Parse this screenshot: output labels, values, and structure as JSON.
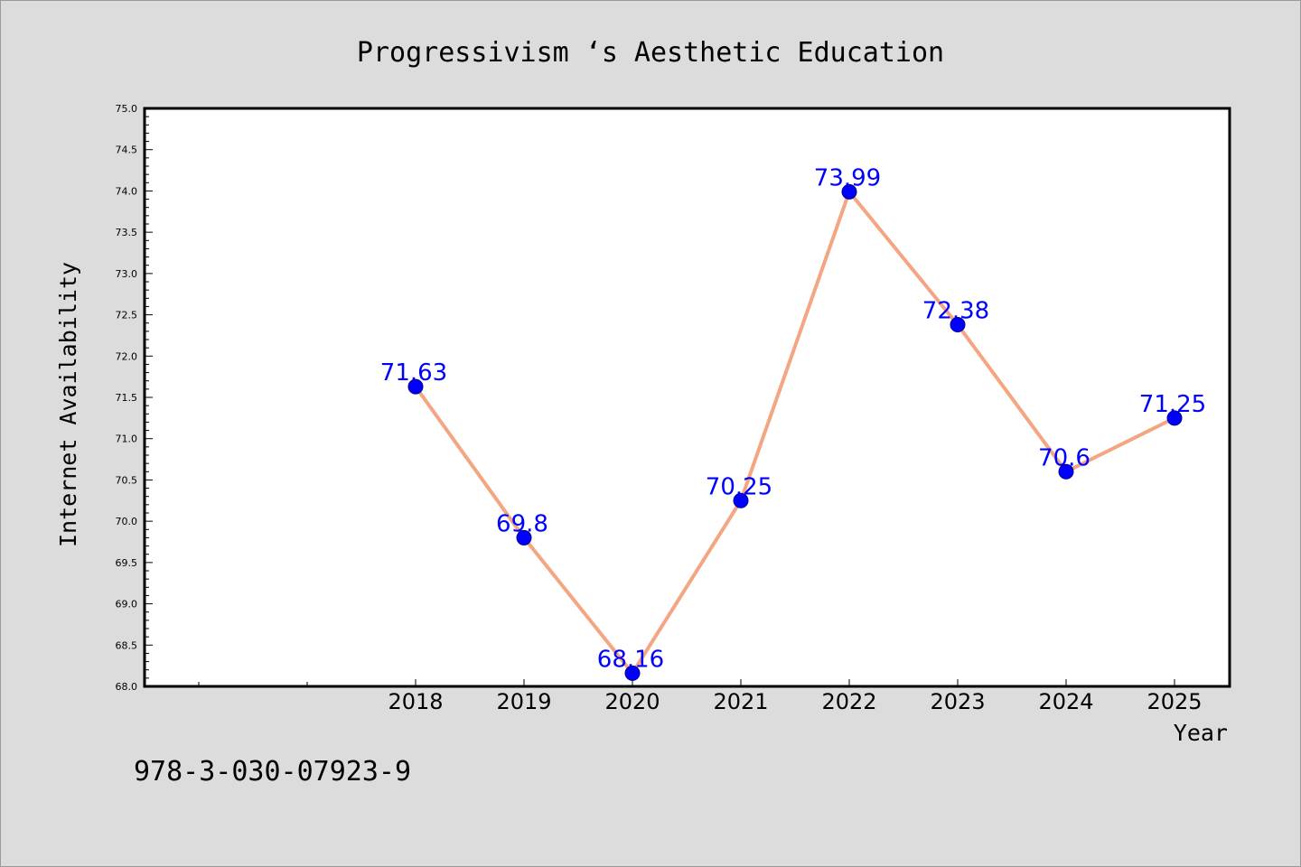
{
  "footnote": "978-3-030-07923-9",
  "chart_data": {
    "type": "line",
    "title": "Progressivism ‘s Aesthetic Education",
    "xlabel": "Year",
    "ylabel": "Internet Availability",
    "categories": [
      "2018",
      "2019",
      "2020",
      "2021",
      "2022",
      "2023",
      "2024",
      "2025"
    ],
    "series": [
      {
        "values": [
          71.63,
          69.8,
          68.16,
          70.25,
          73.99,
          72.38,
          70.6,
          71.25
        ]
      }
    ],
    "data_labels": [
      "71.63",
      "69.8",
      "68.16",
      "70.25",
      "73.99",
      "72.38",
      "70.6",
      "71.25"
    ],
    "ylim": [
      68.0,
      75.0
    ],
    "yticks": [
      "68.0",
      "68.5",
      "69.0",
      "69.5",
      "70.0",
      "70.5",
      "71.0",
      "71.5",
      "72.0",
      "72.5",
      "73.0",
      "73.5",
      "74.0",
      "74.5",
      "75.0"
    ],
    "grid": false,
    "legend": "none",
    "colors": {
      "line": "#f4a582",
      "marker": "#0000ff",
      "label": "#0000ff"
    }
  }
}
